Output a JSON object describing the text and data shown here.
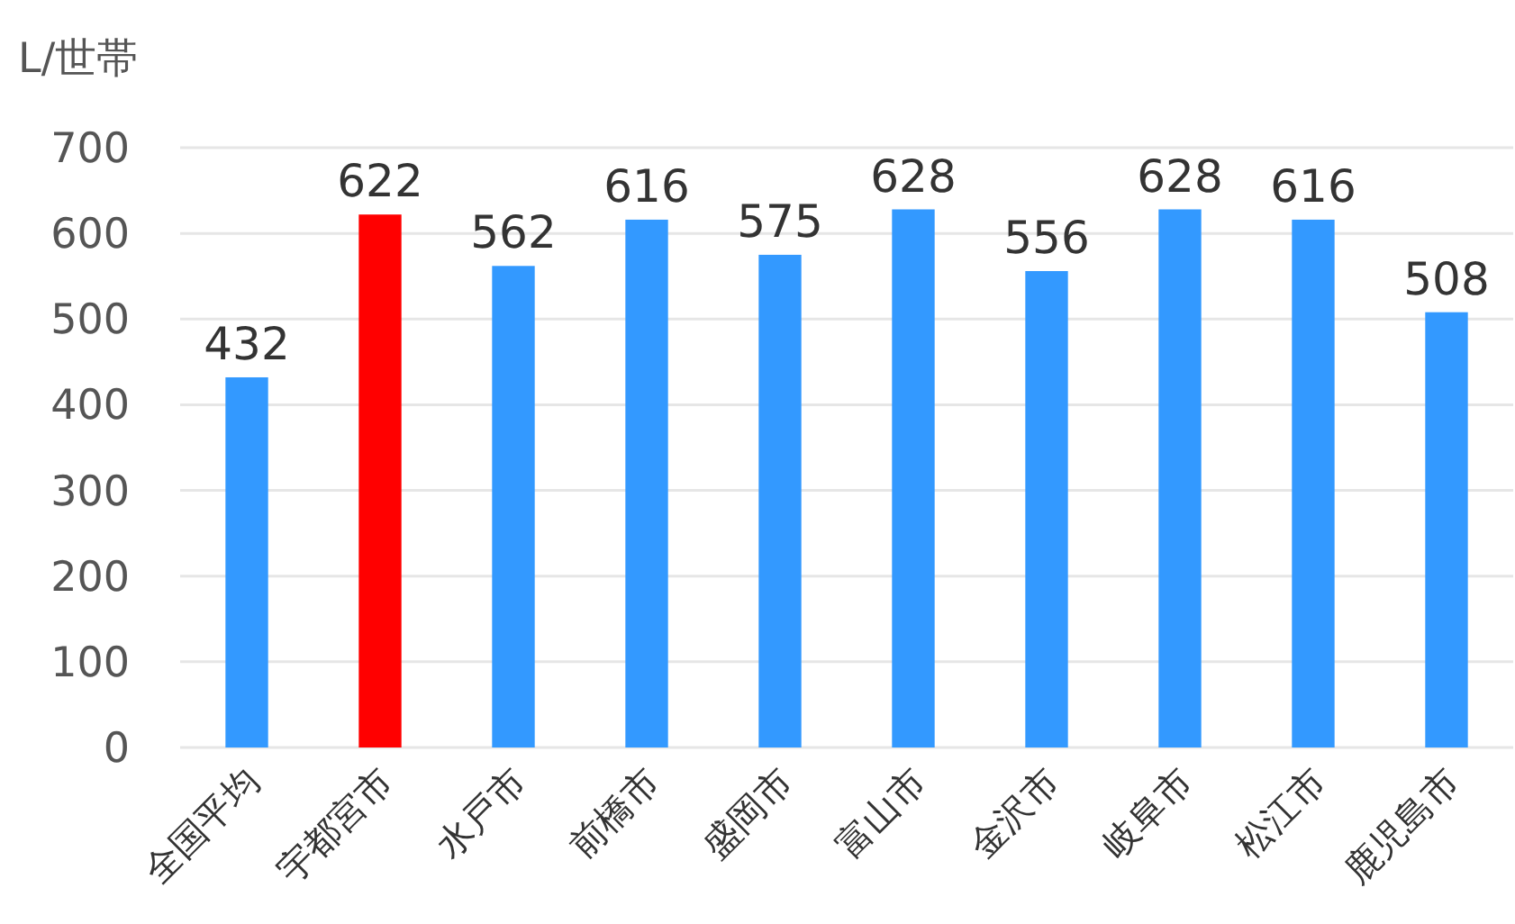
{
  "chart_data": {
    "type": "bar",
    "ylabel": "L/世帯",
    "categories": [
      "全国平均",
      "宇都宮市",
      "水戸市",
      "前橋市",
      "盛岡市",
      "富山市",
      "金沢市",
      "岐阜市",
      "松江市",
      "鹿児島市"
    ],
    "values": [
      432,
      622,
      562,
      616,
      575,
      628,
      556,
      628,
      616,
      508
    ],
    "colors": [
      "#3399ff",
      "#ff0000",
      "#3399ff",
      "#3399ff",
      "#3399ff",
      "#3399ff",
      "#3399ff",
      "#3399ff",
      "#3399ff",
      "#3399ff"
    ],
    "ylim": [
      0,
      700
    ],
    "yticks": [
      0,
      100,
      200,
      300,
      400,
      500,
      600,
      700
    ],
    "grid": "y",
    "data_labels": true
  }
}
